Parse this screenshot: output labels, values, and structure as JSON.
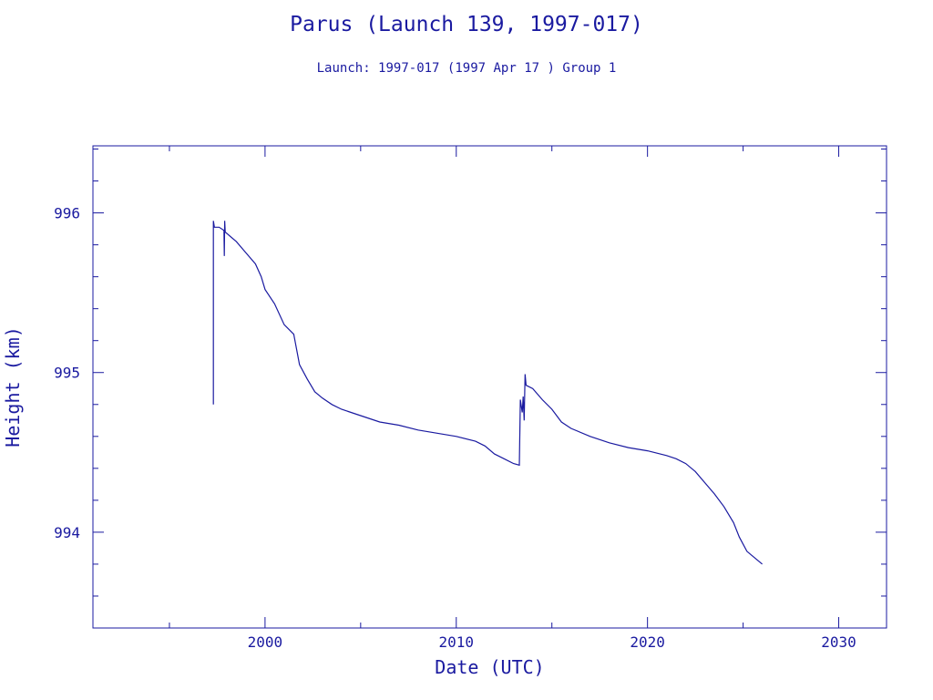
{
  "colors": {
    "ink": "#1a1aa0",
    "background": "#ffffff"
  },
  "chart_data": {
    "type": "line",
    "title": "Parus (Launch 139, 1997-017)",
    "subtitle": "Launch: 1997-017  (1997 Apr 17 )  Group 1",
    "xlabel": "Date (UTC)",
    "ylabel": "Height (km)",
    "xlim": [
      1991,
      2032.5
    ],
    "ylim": [
      993.4,
      996.42
    ],
    "x_major_ticks": [
      2000,
      2010,
      2020,
      2030
    ],
    "x_tick_labels": [
      "2000",
      "2010",
      "2020",
      "2030"
    ],
    "y_major_ticks": [
      994,
      995,
      996
    ],
    "y_tick_labels": [
      "994",
      "995",
      "996"
    ],
    "grid": false,
    "series": [
      {
        "values": [
          [
            1997.3,
            994.8
          ],
          [
            1997.3,
            995.95
          ],
          [
            1997.35,
            995.91
          ],
          [
            1997.6,
            995.91
          ],
          [
            1997.85,
            995.89
          ],
          [
            1997.87,
            995.73
          ],
          [
            1997.89,
            995.95
          ],
          [
            1997.92,
            995.88
          ],
          [
            1998.5,
            995.82
          ],
          [
            1999.0,
            995.75
          ],
          [
            1999.5,
            995.68
          ],
          [
            1999.8,
            995.6
          ],
          [
            2000.0,
            995.52
          ],
          [
            2000.5,
            995.43
          ],
          [
            2001.0,
            995.3
          ],
          [
            2001.5,
            995.24
          ],
          [
            2001.8,
            995.05
          ],
          [
            2002.2,
            994.96
          ],
          [
            2002.6,
            994.88
          ],
          [
            2003.0,
            994.84
          ],
          [
            2003.5,
            994.8
          ],
          [
            2004.0,
            994.77
          ],
          [
            2005.0,
            994.73
          ],
          [
            2006.0,
            994.69
          ],
          [
            2007.0,
            994.67
          ],
          [
            2008.0,
            994.64
          ],
          [
            2009.0,
            994.62
          ],
          [
            2010.0,
            994.6
          ],
          [
            2011.0,
            994.57
          ],
          [
            2011.5,
            994.54
          ],
          [
            2012.0,
            994.49
          ],
          [
            2012.5,
            994.46
          ],
          [
            2013.0,
            994.43
          ],
          [
            2013.3,
            994.42
          ],
          [
            2013.35,
            994.83
          ],
          [
            2013.45,
            994.75
          ],
          [
            2013.5,
            994.85
          ],
          [
            2013.55,
            994.7
          ],
          [
            2013.6,
            994.99
          ],
          [
            2013.65,
            994.92
          ],
          [
            2014.0,
            994.9
          ],
          [
            2014.5,
            994.83
          ],
          [
            2015.0,
            994.77
          ],
          [
            2015.5,
            994.69
          ],
          [
            2016.0,
            994.65
          ],
          [
            2017.0,
            994.6
          ],
          [
            2018.0,
            994.56
          ],
          [
            2019.0,
            994.53
          ],
          [
            2020.0,
            994.51
          ],
          [
            2021.0,
            994.48
          ],
          [
            2021.5,
            994.46
          ],
          [
            2022.0,
            994.43
          ],
          [
            2022.5,
            994.38
          ],
          [
            2023.0,
            994.31
          ],
          [
            2023.5,
            994.24
          ],
          [
            2024.0,
            994.16
          ],
          [
            2024.5,
            994.06
          ],
          [
            2024.8,
            993.97
          ],
          [
            2025.2,
            993.88
          ],
          [
            2025.6,
            993.84
          ],
          [
            2026.0,
            993.8
          ]
        ]
      }
    ]
  }
}
